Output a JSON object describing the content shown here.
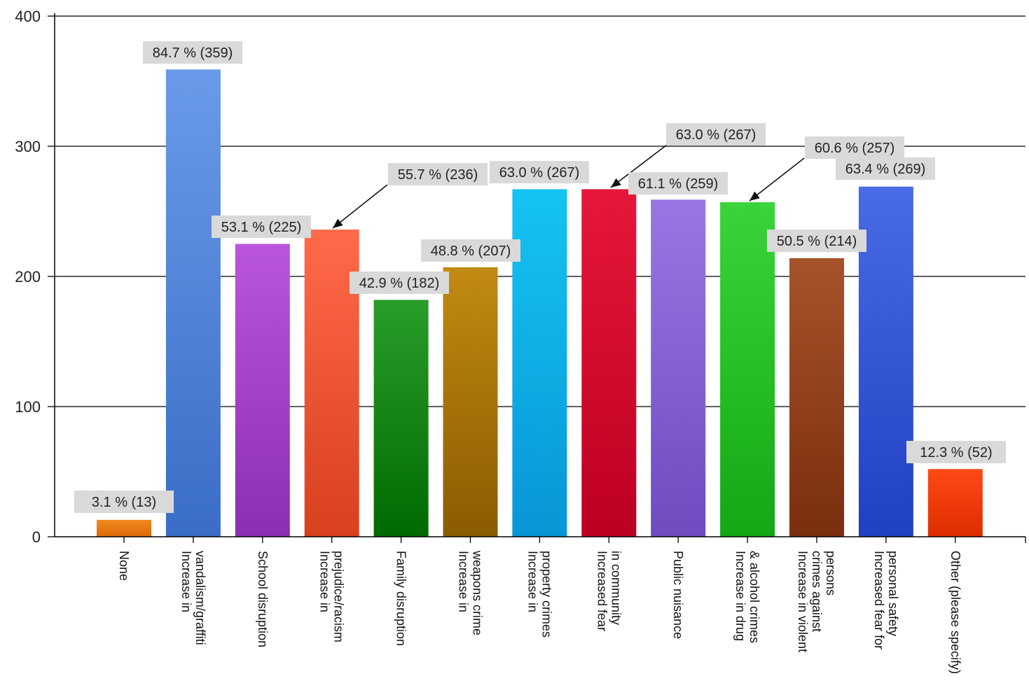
{
  "chart_data": {
    "type": "bar",
    "title": "",
    "xlabel": "",
    "ylabel": "",
    "ylim": [
      0,
      400
    ],
    "yticks": [
      0,
      100,
      200,
      300,
      400
    ],
    "grid": true,
    "legend": "none",
    "categories": [
      [
        "None"
      ],
      [
        "Increase in",
        "vandalism/graffiti"
      ],
      [
        "School disruption"
      ],
      [
        "Increase in",
        "prejudice/racism"
      ],
      [
        "Family disruption"
      ],
      [
        "Increase in",
        "weapons crime"
      ],
      [
        "Increase in",
        "property crimes"
      ],
      [
        "Increased fear",
        "in community"
      ],
      [
        "Public nuisance"
      ],
      [
        "Increase in drug",
        "& alcohol crimes"
      ],
      [
        "Increase in violent",
        "crimes against",
        "persons"
      ],
      [
        "Increased fear for",
        "personal safety"
      ],
      [
        "Other (please specify)"
      ]
    ],
    "values": [
      13,
      359,
      225,
      236,
      182,
      207,
      267,
      267,
      259,
      257,
      214,
      269,
      52
    ],
    "data_labels": [
      "3.1 % (13)",
      "84.7 % (359)",
      "53.1 % (225)",
      "55.7 % (236)",
      "42.9 % (182)",
      "48.8 % (207)",
      "63.0 % (267)",
      "63.0 % (267)",
      "61.1 % (259)",
      "60.6 % (257)",
      "50.5 % (214)",
      "63.4 % (269)",
      "12.3 % (52)"
    ],
    "colors": [
      [
        "#f08a20",
        "#dd6a08"
      ],
      [
        "#6a9ae8",
        "#3a6dc6"
      ],
      [
        "#bb55de",
        "#8c2eb3"
      ],
      [
        "#ff6a4a",
        "#d8401e"
      ],
      [
        "#2a9d2a",
        "#006a00"
      ],
      [
        "#c28a12",
        "#8a5c00"
      ],
      [
        "#14c4f2",
        "#0996d6"
      ],
      [
        "#e6173a",
        "#bc0022"
      ],
      [
        "#9a76e3",
        "#6e4bbf"
      ],
      [
        "#3ad43a",
        "#14a814"
      ],
      [
        "#a6532a",
        "#7a2e0e"
      ],
      [
        "#4a6be6",
        "#1f40c2"
      ],
      [
        "#ff4a16",
        "#dd2d00"
      ]
    ]
  }
}
